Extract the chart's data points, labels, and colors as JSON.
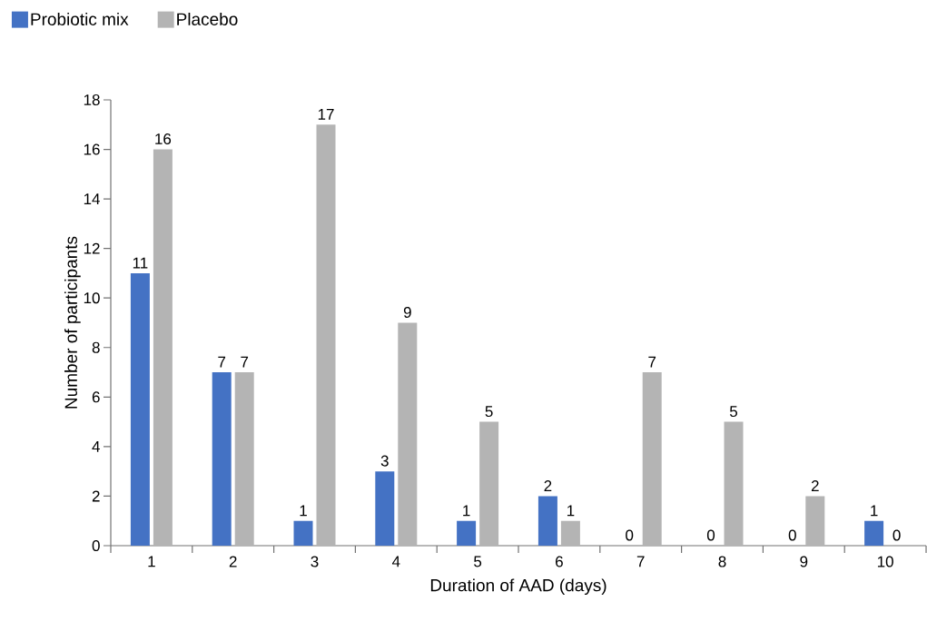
{
  "chart_data": {
    "type": "bar",
    "xlabel": "Duration of AAD (days)",
    "ylabel": "Number of participants",
    "categories": [
      "1",
      "2",
      "3",
      "4",
      "5",
      "6",
      "7",
      "8",
      "9",
      "10"
    ],
    "series": [
      {
        "name": "Probiotic mix",
        "color": "#4472c4",
        "values": [
          11,
          7,
          1,
          3,
          1,
          2,
          0,
          0,
          0,
          1
        ]
      },
      {
        "name": "Placebo",
        "color": "#b4b4b4",
        "values": [
          16,
          7,
          17,
          9,
          5,
          1,
          7,
          5,
          2,
          0
        ]
      }
    ],
    "ylim": [
      0,
      18
    ],
    "yticks": [
      0,
      2,
      4,
      6,
      8,
      10,
      12,
      14,
      16,
      18
    ],
    "grid": false,
    "legend": "top left",
    "data_labels": true
  }
}
